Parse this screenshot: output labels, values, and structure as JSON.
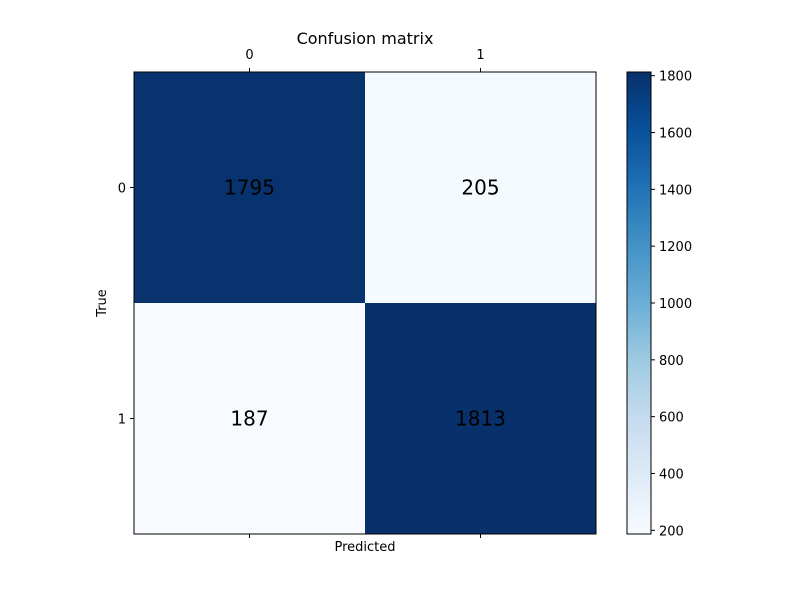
{
  "chart_data": {
    "type": "heatmap",
    "title": "Confusion matrix",
    "xlabel": "Predicted",
    "ylabel": "True",
    "x_categories": [
      "0",
      "1"
    ],
    "y_categories": [
      "0",
      "1"
    ],
    "values": [
      [
        1795,
        205
      ],
      [
        187,
        1813
      ]
    ],
    "colormap": "Blues",
    "colorbar": {
      "range": [
        187,
        1813
      ],
      "ticks": [
        200,
        400,
        600,
        800,
        1000,
        1200,
        1400,
        1600,
        1800
      ]
    },
    "colors": {
      "low": "#f7fbff",
      "high": "#08306b"
    }
  }
}
